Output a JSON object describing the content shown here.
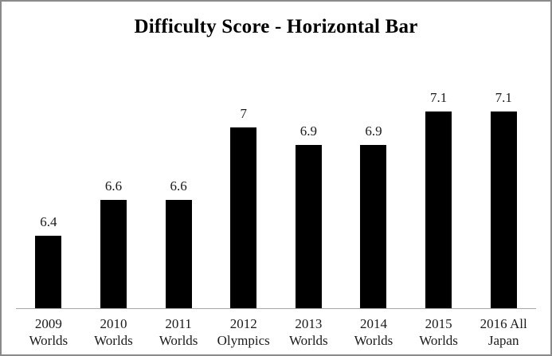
{
  "window": {
    "background": "#ffffff",
    "border_color": "#8a8a8a"
  },
  "chart_data": {
    "type": "bar",
    "orientation": "vertical",
    "title": "Difficulty Score - Horizontal Bar",
    "categories": [
      "2009 Worlds",
      "2010 Worlds",
      "2011 Worlds",
      "2012 Olympics",
      "2013 Worlds",
      "2014 Worlds",
      "2015 Worlds",
      "2016 All Japan"
    ],
    "category_lines": [
      [
        "2009",
        "Worlds"
      ],
      [
        "2010",
        "Worlds"
      ],
      [
        "2011",
        "Worlds"
      ],
      [
        "2012",
        "Olympics"
      ],
      [
        "2013",
        "Worlds"
      ],
      [
        "2014",
        "Worlds"
      ],
      [
        "2015",
        "Worlds"
      ],
      [
        "2016 All",
        "Japan"
      ]
    ],
    "values": [
      6.4,
      6.6,
      6.6,
      7,
      6.9,
      6.9,
      7.1,
      7.1
    ],
    "value_labels": [
      "6.4",
      "6.6",
      "6.6",
      "7",
      "6.9",
      "6.9",
      "7.1",
      "7.1"
    ],
    "xlabel": "",
    "ylabel": "",
    "ylim": [
      6.0,
      7.2
    ],
    "grid": false,
    "legend": "none",
    "bar_color": "#000000",
    "axis_line_color": "#a6a6a6",
    "text_color": "#1a1a1a"
  }
}
